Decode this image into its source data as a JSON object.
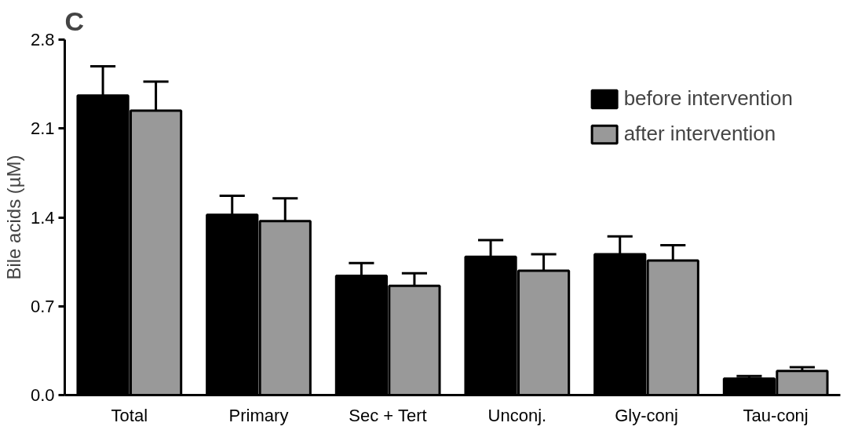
{
  "chart_data": {
    "type": "bar",
    "ylabel": "Bile acids (µM)",
    "annotations": [
      "C"
    ],
    "categories": [
      "Total",
      "Primary",
      "Sec + Tert",
      "Unconj.",
      "Gly-conj",
      "Tau-conj"
    ],
    "series": [
      {
        "name": "before intervention",
        "color": "#000000",
        "values": [
          2.36,
          1.42,
          0.94,
          1.09,
          1.11,
          0.13
        ],
        "errors": [
          [
            2.36,
            2.59
          ],
          [
            1.42,
            1.57
          ],
          [
            0.94,
            1.04
          ],
          [
            1.09,
            1.22
          ],
          [
            1.11,
            1.25
          ],
          [
            0.13,
            0.15
          ]
        ]
      },
      {
        "name": "after intervention",
        "color": "#999999",
        "values": [
          2.24,
          1.37,
          0.86,
          0.98,
          1.06,
          0.19
        ],
        "errors": [
          [
            2.24,
            2.47
          ],
          [
            1.37,
            1.55
          ],
          [
            0.86,
            0.96
          ],
          [
            0.98,
            1.11
          ],
          [
            1.06,
            1.18
          ],
          [
            0.19,
            0.22
          ]
        ]
      }
    ],
    "ylim": [
      0,
      2.8
    ],
    "yticks": [
      {
        "value": 0,
        "label": "0.0"
      },
      0.7,
      1.4,
      2.1,
      2.8
    ],
    "grid": false,
    "legend": "top right"
  }
}
